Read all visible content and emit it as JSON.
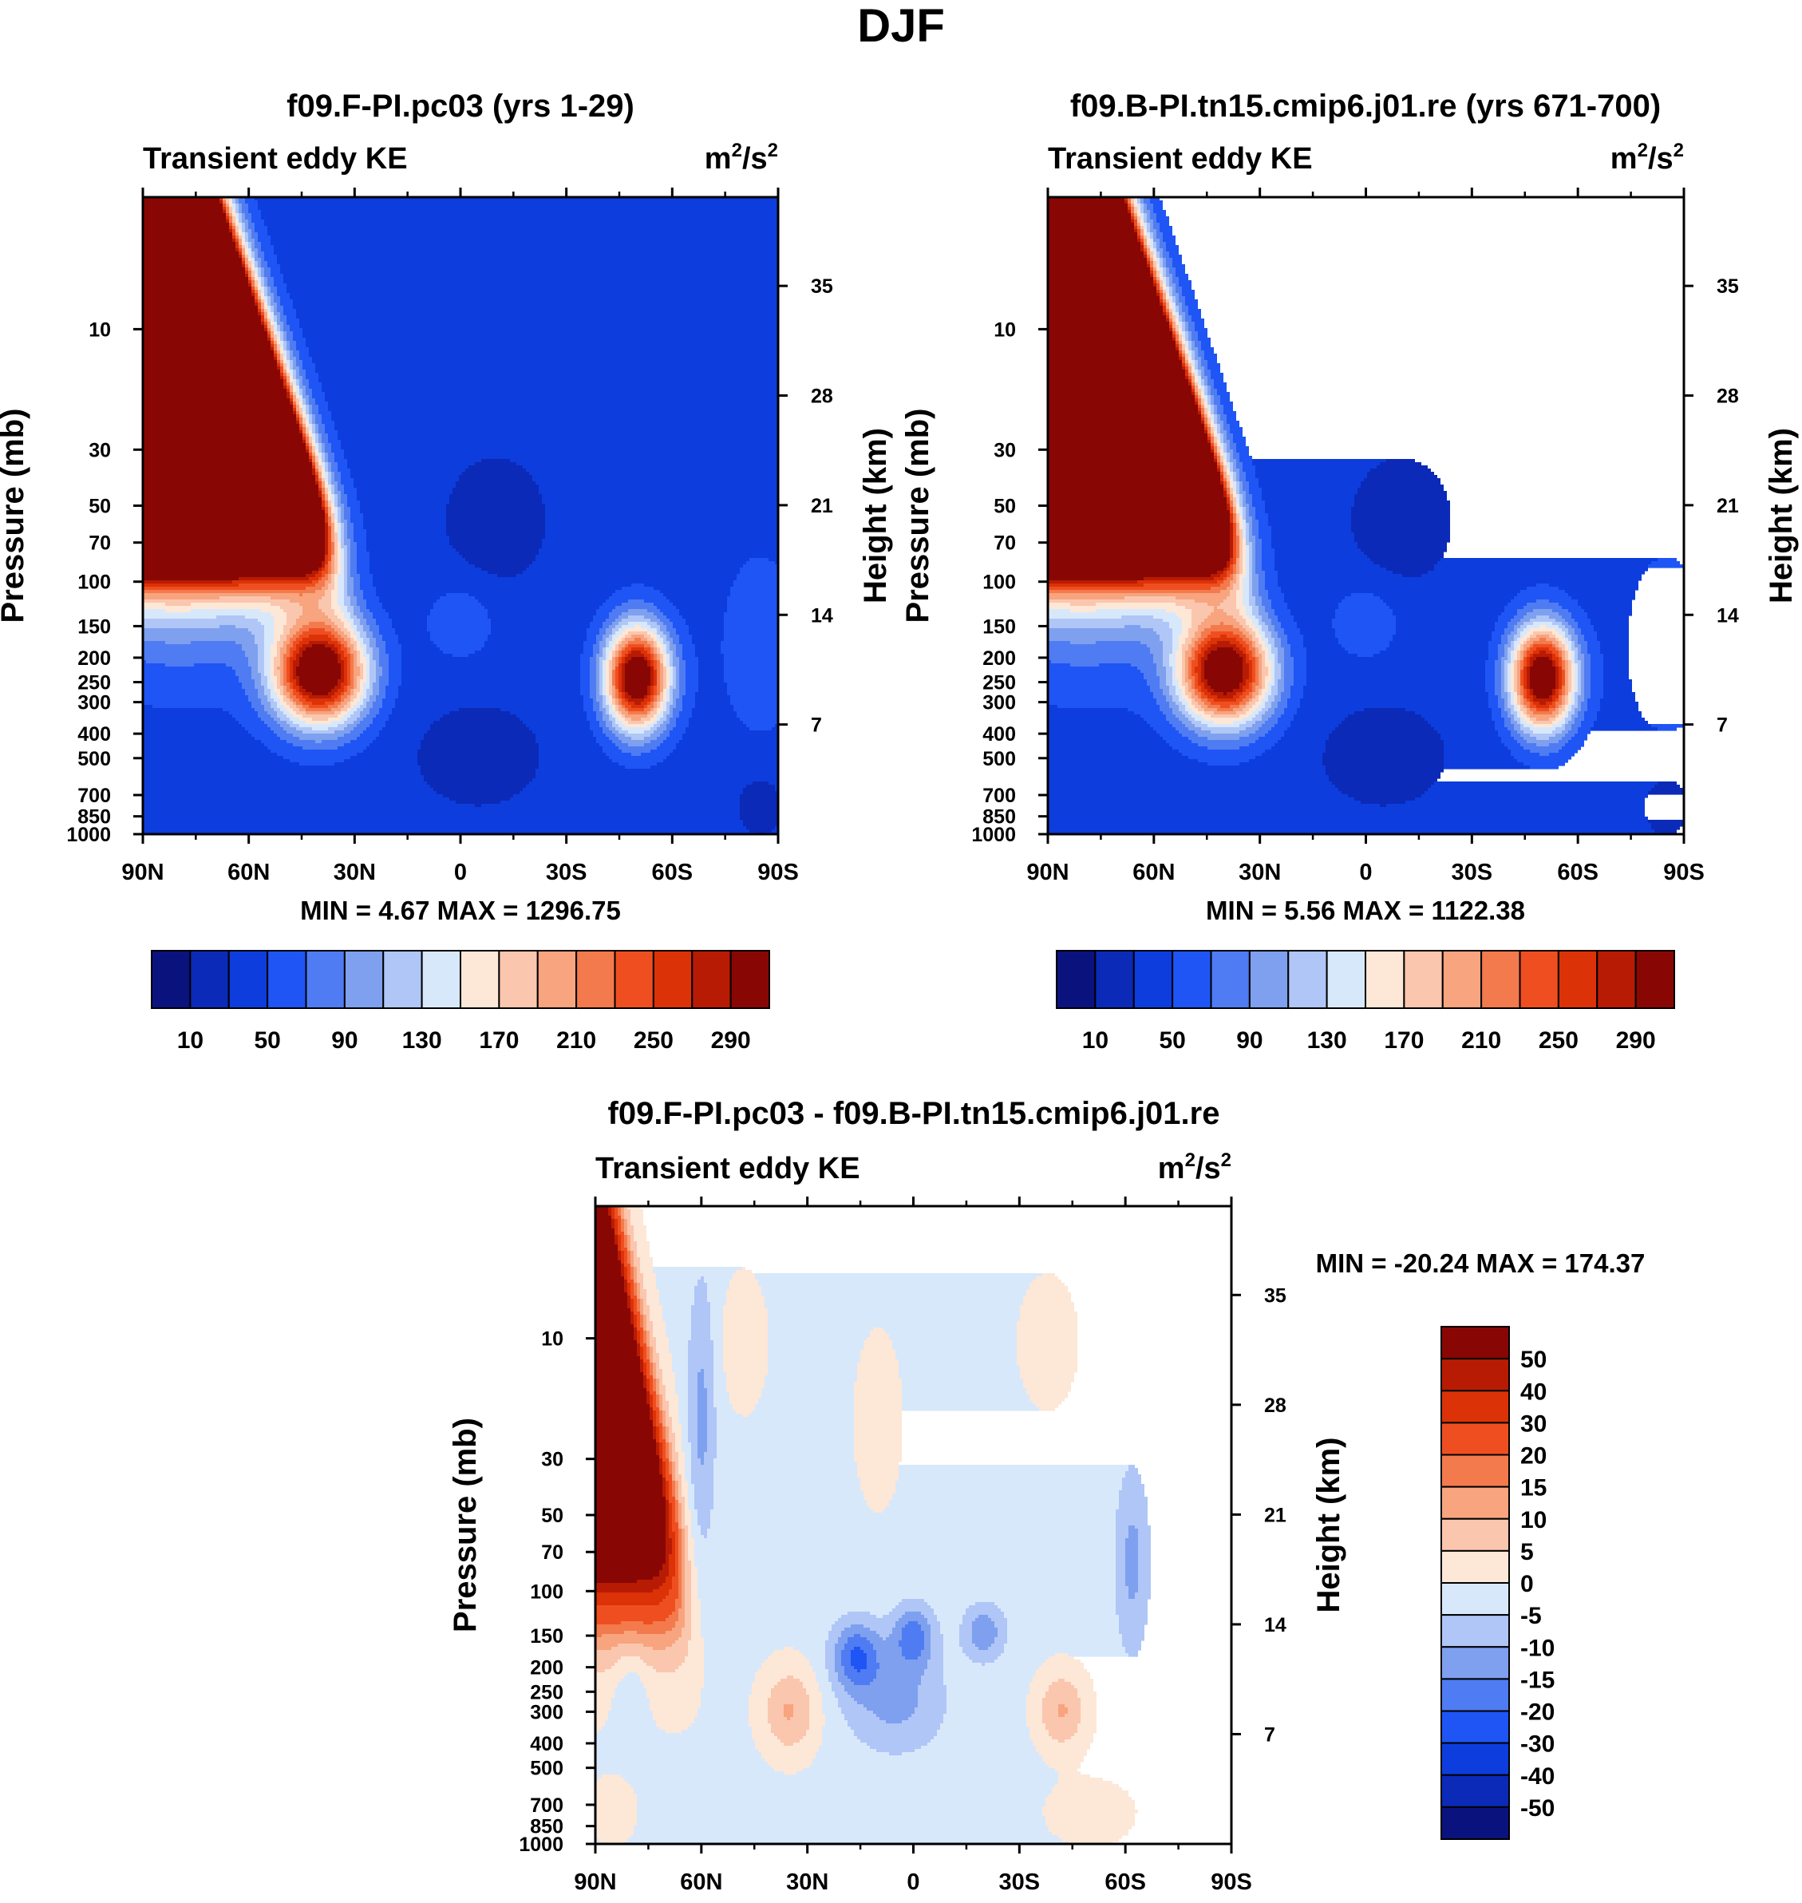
{
  "figure": {
    "title": "DJF"
  },
  "colors": {
    "abs_scale": [
      "#0a127e",
      "#0b2ab8",
      "#0d3ddd",
      "#1f55f5",
      "#4f7cf2",
      "#7ea0ef",
      "#afc6f7",
      "#d8e8fb",
      "#fde7d6",
      "#fbc6ae",
      "#f7a47f",
      "#f37a4d",
      "#ef4f20",
      "#dc3208",
      "#b81b04",
      "#880704"
    ],
    "diff_scale": [
      "#0a127e",
      "#0b2ab8",
      "#0d3ddd",
      "#1f55f5",
      "#4f7cf2",
      "#7ea0ef",
      "#afc6f7",
      "#d8e8fb",
      "#fde7d6",
      "#fbc6ae",
      "#f7a47f",
      "#f37a4d",
      "#ef4f20",
      "#dc3208",
      "#b81b04",
      "#880704"
    ]
  },
  "chart_data": [
    {
      "type": "heatmap",
      "title": "f09.F-PI.pc03 (yrs 1-29)",
      "left_string": "Transient eddy KE",
      "units": "m²/s²",
      "units_base": "m",
      "units_exp1": "2",
      "units_mid": "/s",
      "units_exp2": "2",
      "xlabel": "",
      "ylabel": "Pressure (mb)",
      "y2label": "Height (km)",
      "x_ticks": [
        "90N",
        "60N",
        "30N",
        "0",
        "30S",
        "60S",
        "90S"
      ],
      "x_tick_values": [
        90,
        60,
        30,
        0,
        -30,
        -60,
        -90
      ],
      "y_ticks": [
        "10",
        "30",
        "50",
        "70",
        "100",
        "150",
        "200",
        "250",
        "300",
        "400",
        "500",
        "700",
        "850",
        "1000"
      ],
      "y_tick_values": [
        10,
        30,
        50,
        70,
        100,
        150,
        200,
        250,
        300,
        400,
        500,
        700,
        850,
        1000
      ],
      "y2_ticks": [
        "35",
        "28",
        "21",
        "14",
        "7"
      ],
      "y2_tick_values": [
        35,
        28,
        21,
        14,
        7
      ],
      "ylim": [
        1000,
        3
      ],
      "min_label": "MIN =",
      "min_value": "4.67",
      "max_label": "MAX =",
      "max_value": "1296.75",
      "colorbar_levels": [
        "10",
        "50",
        "90",
        "130",
        "170",
        "210",
        "250",
        "290"
      ],
      "contour_levels": [
        10,
        30,
        50,
        70,
        90,
        110,
        130,
        150,
        170,
        190,
        210,
        230,
        250,
        270,
        290
      ],
      "features": [
        {
          "name": "arctic-stratosphere",
          "lat": 90,
          "p": 5,
          "value": 1296
        },
        {
          "name": "nh-jet-core",
          "lat": 38,
          "p": 260,
          "value": 300
        },
        {
          "name": "sh-jet-core",
          "lat": -50,
          "p": 270,
          "value": 300
        },
        {
          "name": "tropical-minimum",
          "lat": -10,
          "p": 40,
          "value": 5
        }
      ]
    },
    {
      "type": "heatmap",
      "title": "f09.B-PI.tn15.cmip6.j01.re (yrs 671-700)",
      "left_string": "Transient eddy KE",
      "units": "m²/s²",
      "units_base": "m",
      "units_exp1": "2",
      "units_mid": "/s",
      "units_exp2": "2",
      "xlabel": "",
      "ylabel": "Pressure (mb)",
      "y2label": "Height (km)",
      "x_ticks": [
        "90N",
        "60N",
        "30N",
        "0",
        "30S",
        "60S",
        "90S"
      ],
      "x_tick_values": [
        90,
        60,
        30,
        0,
        -30,
        -60,
        -90
      ],
      "y_ticks": [
        "10",
        "30",
        "50",
        "70",
        "100",
        "150",
        "200",
        "250",
        "300",
        "400",
        "500",
        "700",
        "850",
        "1000"
      ],
      "y_tick_values": [
        10,
        30,
        50,
        70,
        100,
        150,
        200,
        250,
        300,
        400,
        500,
        700,
        850,
        1000
      ],
      "y2_ticks": [
        "35",
        "28",
        "21",
        "14",
        "7"
      ],
      "y2_tick_values": [
        35,
        28,
        21,
        14,
        7
      ],
      "ylim": [
        1000,
        3
      ],
      "min_label": "MIN =",
      "min_value": "5.56",
      "max_label": "MAX =",
      "max_value": "1122.38",
      "colorbar_levels": [
        "10",
        "50",
        "90",
        "130",
        "170",
        "210",
        "250",
        "290"
      ],
      "contour_levels": [
        10,
        30,
        50,
        70,
        90,
        110,
        130,
        150,
        170,
        190,
        210,
        230,
        250,
        270,
        290
      ],
      "features": [
        {
          "name": "arctic-stratosphere",
          "lat": 90,
          "p": 5,
          "value": 1122
        },
        {
          "name": "nh-jet-core",
          "lat": 40,
          "p": 270,
          "value": 290
        },
        {
          "name": "sh-jet-core",
          "lat": -50,
          "p": 260,
          "value": 300
        },
        {
          "name": "tropical-minimum",
          "lat": -10,
          "p": 40,
          "value": 6
        }
      ]
    },
    {
      "type": "heatmap",
      "title": "f09.F-PI.pc03 - f09.B-PI.tn15.cmip6.j01.re",
      "left_string": "Transient eddy KE",
      "units": "m²/s²",
      "units_base": "m",
      "units_exp1": "2",
      "units_mid": "/s",
      "units_exp2": "2",
      "xlabel": "",
      "ylabel": "Pressure (mb)",
      "y2label": "Height (km)",
      "x_ticks": [
        "90N",
        "60N",
        "30N",
        "0",
        "30S",
        "60S",
        "90S"
      ],
      "x_tick_values": [
        90,
        60,
        30,
        0,
        -30,
        -60,
        -90
      ],
      "y_ticks": [
        "10",
        "30",
        "50",
        "70",
        "100",
        "150",
        "200",
        "250",
        "300",
        "400",
        "500",
        "700",
        "850",
        "1000"
      ],
      "y_tick_values": [
        10,
        30,
        50,
        70,
        100,
        150,
        200,
        250,
        300,
        400,
        500,
        700,
        850,
        1000
      ],
      "y2_ticks": [
        "35",
        "28",
        "21",
        "14",
        "7"
      ],
      "y2_tick_values": [
        35,
        28,
        21,
        14,
        7
      ],
      "ylim": [
        1000,
        3
      ],
      "min_label": "MIN =",
      "min_value": "-20.24",
      "max_label": "MAX =",
      "max_value": "174.37",
      "colorbar_levels": [
        "50",
        "40",
        "30",
        "20",
        "15",
        "10",
        "5",
        "0",
        "-5",
        "-10",
        "-15",
        "-20",
        "-30",
        "-40",
        "-50"
      ],
      "contour_levels": [
        -50,
        -40,
        -30,
        -20,
        -15,
        -10,
        -5,
        0,
        5,
        10,
        15,
        20,
        30,
        40,
        50
      ],
      "features": [
        {
          "name": "arctic-stratosphere",
          "lat": 90,
          "p": 5,
          "value": 174
        },
        {
          "name": "nh-jet-positive",
          "lat": 35,
          "p": 320,
          "value": 12
        },
        {
          "name": "sh-jet-positive",
          "lat": -42,
          "p": 320,
          "value": 12
        },
        {
          "name": "tropical-negative",
          "lat": 12,
          "p": 160,
          "value": -20
        }
      ]
    }
  ]
}
